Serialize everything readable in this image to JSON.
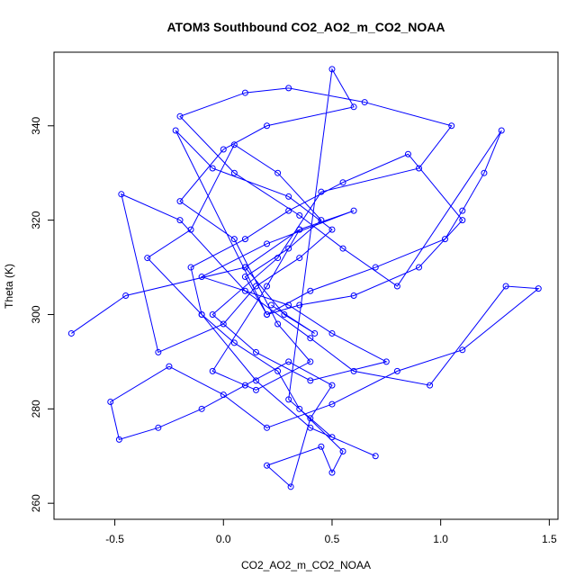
{
  "chart_data": {
    "type": "scatter",
    "connect": true,
    "title": "ATOM3 Southbound CO2_AO2_m_CO2_NOAA",
    "x_label": "CO2_AO2_m_CO2_NOAA",
    "y_label": "Theta (K)",
    "xlim": [
      -0.78,
      1.54
    ],
    "ylim": [
      256.6,
      355.6
    ],
    "xticks": [
      -0.5,
      {
        "value": 0,
        "label": "0.0"
      },
      0.5,
      {
        "value": 1,
        "label": "1.0"
      },
      1.5
    ],
    "yticks": [
      260,
      280,
      300,
      320,
      340
    ],
    "x": [
      -0.7,
      -0.45,
      0.1,
      0.35,
      0.6,
      0.2,
      -0.1,
      0.3,
      0.5,
      0.75,
      0.4,
      0.15,
      -0.05,
      0.25,
      0.45,
      0.9,
      1.05,
      0.65,
      0.3,
      0.1,
      -0.2,
      0.05,
      0.35,
      0.55,
      0.8,
      1.28,
      1.2,
      1.1,
      1.02,
      0.7,
      0.4,
      0.2,
      -0.22,
      -0.05,
      0.3,
      0.5,
      0.35,
      0.15,
      0.0,
      -0.3,
      -0.47,
      -0.2,
      0.1,
      0.4,
      0.6,
      0.95,
      1.3,
      1.45,
      1.1,
      0.8,
      0.5,
      0.2,
      0.0,
      -0.25,
      -0.52,
      -0.48,
      -0.3,
      -0.1,
      0.1,
      0.3,
      0.5,
      0.4,
      0.31,
      0.2,
      0.45,
      0.5,
      0.55,
      0.35,
      0.25,
      0.05,
      -0.1,
      -0.15,
      0.1,
      0.3,
      0.55,
      0.85,
      1.1,
      0.9,
      0.6,
      0.35,
      0.2,
      0.1,
      0.3,
      0.45,
      0.25,
      0.05,
      -0.15,
      -0.35,
      -0.1,
      0.15,
      0.4,
      0.7,
      0.5,
      0.3,
      0.5,
      0.6,
      0.2,
      0.0,
      -0.2,
      0.05,
      0.25,
      0.4,
      0.15,
      -0.05,
      0.2,
      0.35,
      0.1,
      0.28,
      0.42,
      0.22
    ],
    "series": [
      {
        "color": "#0000ff",
        "values": [
          296,
          304,
          310,
          318,
          322,
          315,
          308,
          302,
          296,
          290,
          286,
          292,
          300,
          312,
          326,
          331,
          340,
          345,
          348,
          347,
          342,
          330,
          321,
          314,
          306,
          339,
          330,
          322,
          316,
          310,
          305,
          300,
          339,
          331,
          325,
          318,
          312,
          306,
          298,
          292,
          325.5,
          320,
          305,
          295,
          288,
          285,
          306,
          305.5,
          292.5,
          288,
          281,
          276,
          283,
          289,
          281.5,
          273.5,
          276,
          280,
          285,
          290,
          285,
          278,
          263.5,
          268,
          272,
          266.5,
          271,
          280,
          288,
          294,
          300,
          310,
          316,
          322,
          328,
          334,
          320,
          310,
          304,
          302,
          300,
          308,
          314,
          320,
          330,
          336,
          318,
          312,
          300,
          286,
          276,
          270,
          274,
          282,
          352,
          344,
          340,
          335,
          324,
          316,
          298,
          290,
          284,
          288,
          306,
          318,
          310,
          300,
          296,
          302
        ]
      }
    ]
  }
}
